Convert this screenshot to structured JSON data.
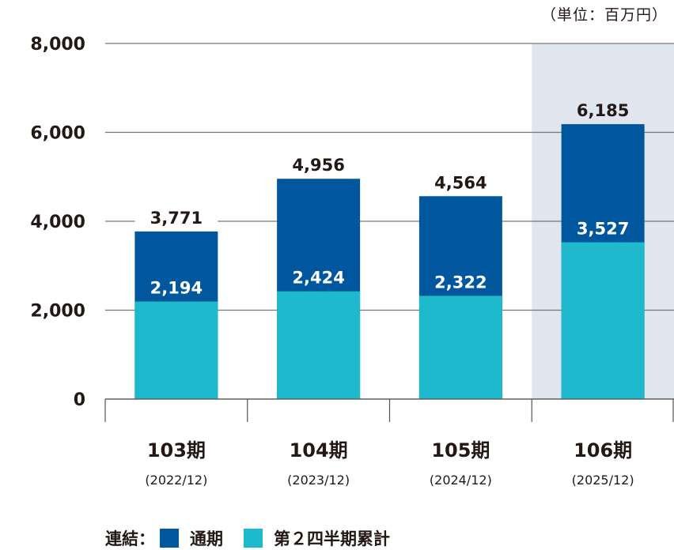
{
  "chart_data": {
    "type": "bar",
    "stacked": false,
    "unit_label": "（単位：百万円）",
    "categories": [
      "103期",
      "104期",
      "105期",
      "106期"
    ],
    "sub_categories": [
      "(2022/12)",
      "(2023/12)",
      "(2024/12)",
      "(2025/12)"
    ],
    "series": [
      {
        "name": "通期",
        "values": [
          3771,
          4956,
          4564,
          6185
        ],
        "color": "#00579d"
      },
      {
        "name": "第２四半期累計",
        "values": [
          2194,
          2424,
          2322,
          3527
        ],
        "color": "#1eb9cd"
      }
    ],
    "highlight_category": "106期",
    "highlight_color": "#e1e5ed",
    "ylim": [
      0,
      8000
    ],
    "yticks": [
      0,
      2000,
      4000,
      6000,
      8000
    ],
    "ytick_labels": [
      "0",
      "2,000",
      "4,000",
      "6,000",
      "8,000"
    ],
    "value_labels_full": [
      "3,771",
      "4,956",
      "4,564",
      "6,185"
    ],
    "value_labels_half": [
      "2,194",
      "2,424",
      "2,322",
      "3,527"
    ],
    "grid": true,
    "legend": {
      "prefix": "連結：",
      "position": "bottom-left"
    }
  }
}
